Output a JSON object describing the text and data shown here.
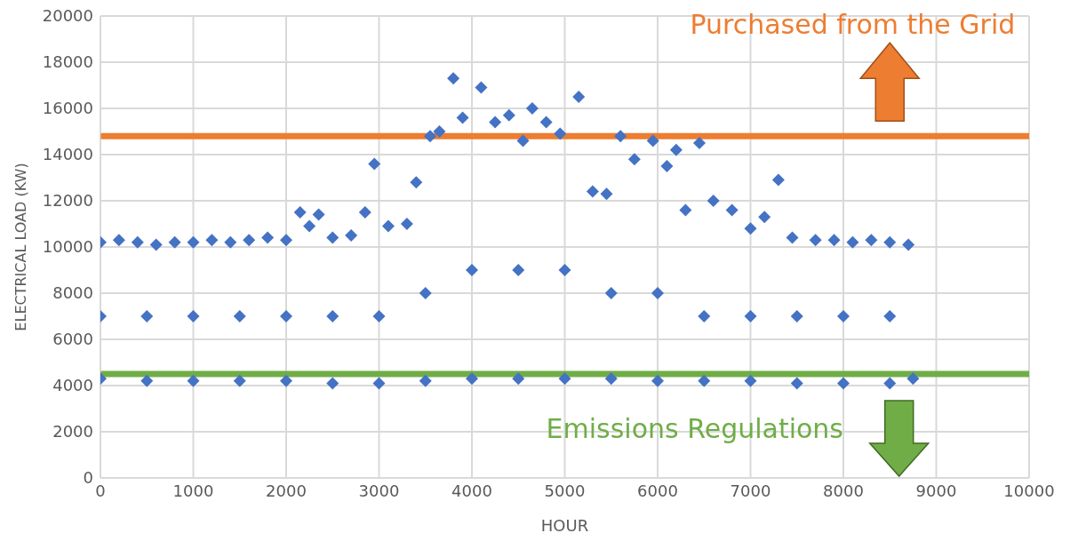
{
  "chart_data": {
    "type": "scatter",
    "xlabel": "HOUR",
    "ylabel": "ELECTRICAL LOAD (KW)",
    "xlim": [
      0,
      10000
    ],
    "xticks": [
      0,
      1000,
      2000,
      3000,
      4000,
      5000,
      6000,
      7000,
      8000,
      9000,
      10000
    ],
    "ylim": [
      0,
      20000
    ],
    "yticks": [
      0,
      2000,
      4000,
      6000,
      8000,
      10000,
      12000,
      14000,
      16000,
      18000,
      20000
    ],
    "grid": true,
    "marker": "diamond",
    "series": [
      {
        "color": "#4472c4",
        "x": [
          0,
          200,
          400,
          600,
          800,
          1000,
          1200,
          1400,
          1600,
          1800,
          2000,
          2150,
          2250,
          2350,
          2500,
          2700,
          2850,
          2950,
          3100,
          3300,
          3400,
          3550,
          3650,
          3800,
          3900,
          4100,
          4250,
          4400,
          4550,
          4650,
          4800,
          4950,
          5150,
          5300,
          5450,
          5600,
          5750,
          5950,
          6100,
          6200,
          6300,
          6450,
          6600,
          6800,
          7000,
          7150,
          7300,
          7450,
          7700,
          7900,
          8100,
          8300,
          8500,
          8700,
          0,
          500,
          1000,
          1500,
          2000,
          2500,
          3000,
          3500,
          4000,
          4500,
          5000,
          5500,
          6000,
          6500,
          7000,
          7500,
          8000,
          8500,
          8750,
          0,
          500,
          1000,
          1500,
          2000,
          2500,
          3000,
          3500,
          4000,
          4500,
          5000,
          5500,
          6000,
          6500,
          7000,
          7500,
          8000,
          8500
        ],
        "values": [
          10200,
          10300,
          10200,
          10100,
          10200,
          10200,
          10300,
          10200,
          10300,
          10400,
          10300,
          11500,
          10900,
          11400,
          10400,
          10500,
          11500,
          13600,
          10900,
          11000,
          12800,
          14800,
          15000,
          17300,
          15600,
          16900,
          15400,
          15700,
          14600,
          16000,
          15400,
          14900,
          16500,
          12400,
          12300,
          14800,
          13800,
          14600,
          13500,
          14200,
          11600,
          14500,
          12000,
          11600,
          10800,
          11300,
          12900,
          10400,
          10300,
          10300,
          10200,
          10300,
          10200,
          10100,
          4300,
          4200,
          4200,
          4200,
          4200,
          4100,
          4100,
          4200,
          4300,
          4300,
          4300,
          4300,
          4200,
          4200,
          4200,
          4100,
          4100,
          4100,
          4300,
          7000,
          7000,
          7000,
          7000,
          7000,
          7000,
          7000,
          8000,
          9000,
          9000,
          9000,
          8000,
          8000,
          7000,
          7000,
          7000,
          7000,
          7000
        ]
      }
    ],
    "ref_lines": [
      {
        "axis": "y",
        "value": 14800,
        "label": "Purchased from the Grid",
        "color": "#ed7d31"
      },
      {
        "axis": "y",
        "value": 4500,
        "label": "Emissions Regulations",
        "color": "#70ad47"
      }
    ]
  }
}
